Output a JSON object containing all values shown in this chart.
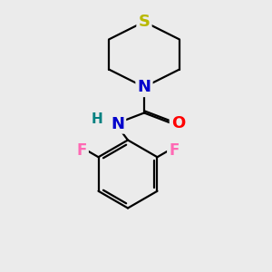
{
  "background_color": "#ebebeb",
  "atom_colors": {
    "S": "#b8b800",
    "N": "#0000cc",
    "O": "#ff0000",
    "F": "#ff69b4",
    "C": "#000000",
    "H": "#008080"
  },
  "bond_color": "#000000",
  "bond_width": 1.6,
  "figsize": [
    3.0,
    3.0
  ],
  "dpi": 100
}
